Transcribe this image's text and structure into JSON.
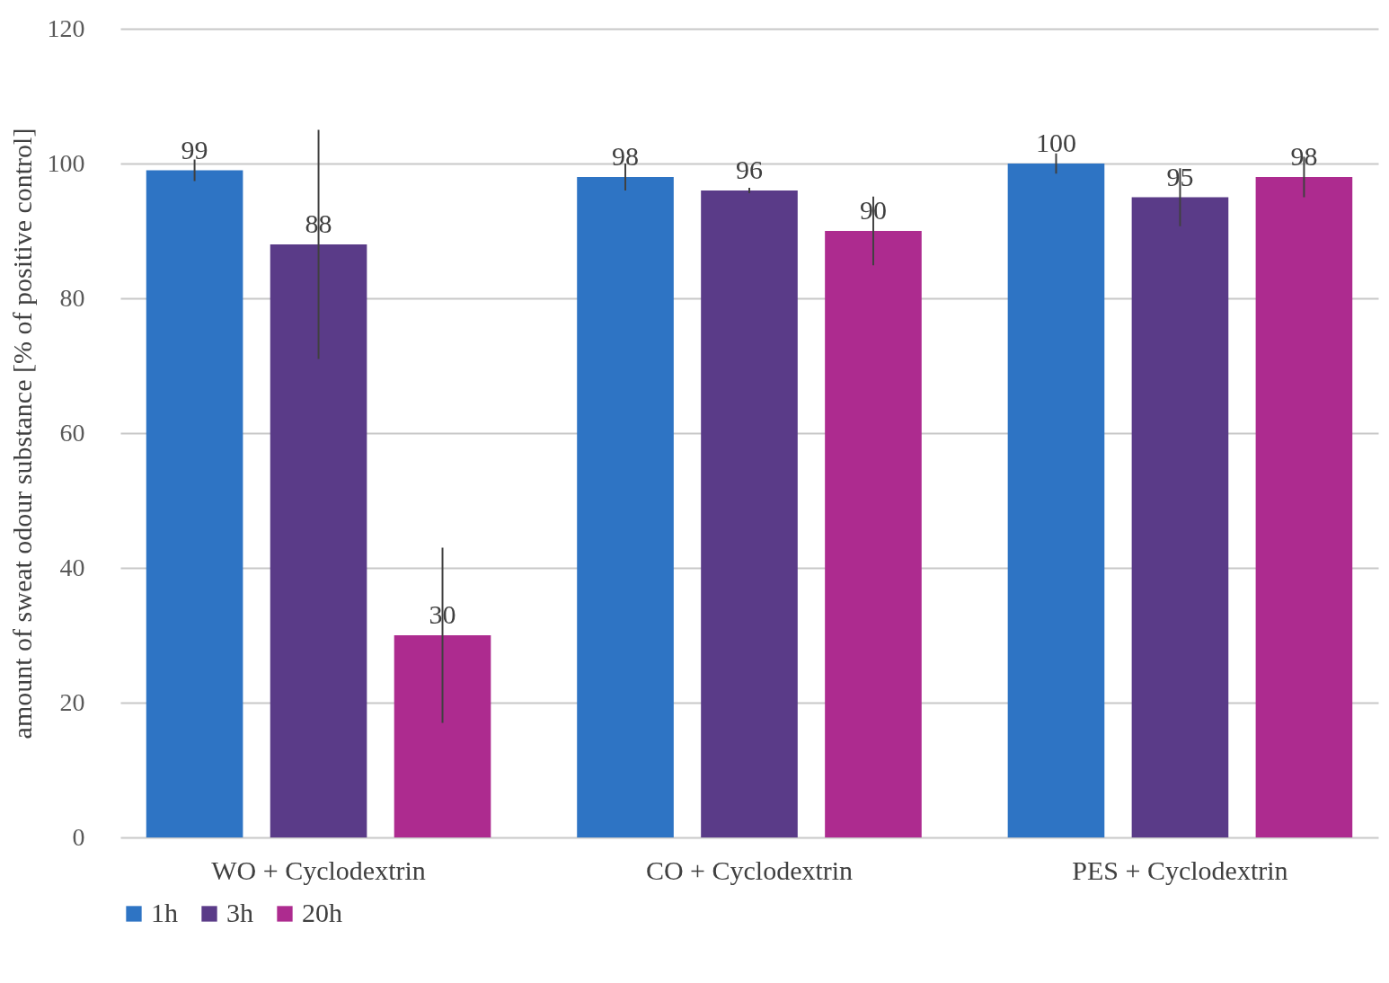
{
  "chart_data": {
    "type": "bar",
    "ylabel": "amount of sweat odour substance [% of positive control]",
    "categories": [
      "WO + Cyclodextrin",
      "CO + Cyclodextrin",
      "PES + Cyclodextrin"
    ],
    "series": [
      {
        "name": "1h",
        "color": "#2e74c4",
        "values": [
          99,
          98,
          100
        ],
        "errors": [
          1.6,
          2,
          1.5
        ]
      },
      {
        "name": "3h",
        "color": "#5a3b88",
        "values": [
          88,
          96,
          95
        ],
        "errors": [
          17,
          0.4,
          4.3
        ]
      },
      {
        "name": "20h",
        "color": "#ad2b8f",
        "values": [
          30,
          90,
          98
        ],
        "errors": [
          13,
          5.1,
          3
        ]
      }
    ],
    "ylim": [
      0,
      120
    ],
    "yticks": [
      0,
      20,
      40,
      60,
      80,
      100,
      120
    ],
    "grid": "y",
    "legend": "bottom",
    "data_labels": true
  }
}
